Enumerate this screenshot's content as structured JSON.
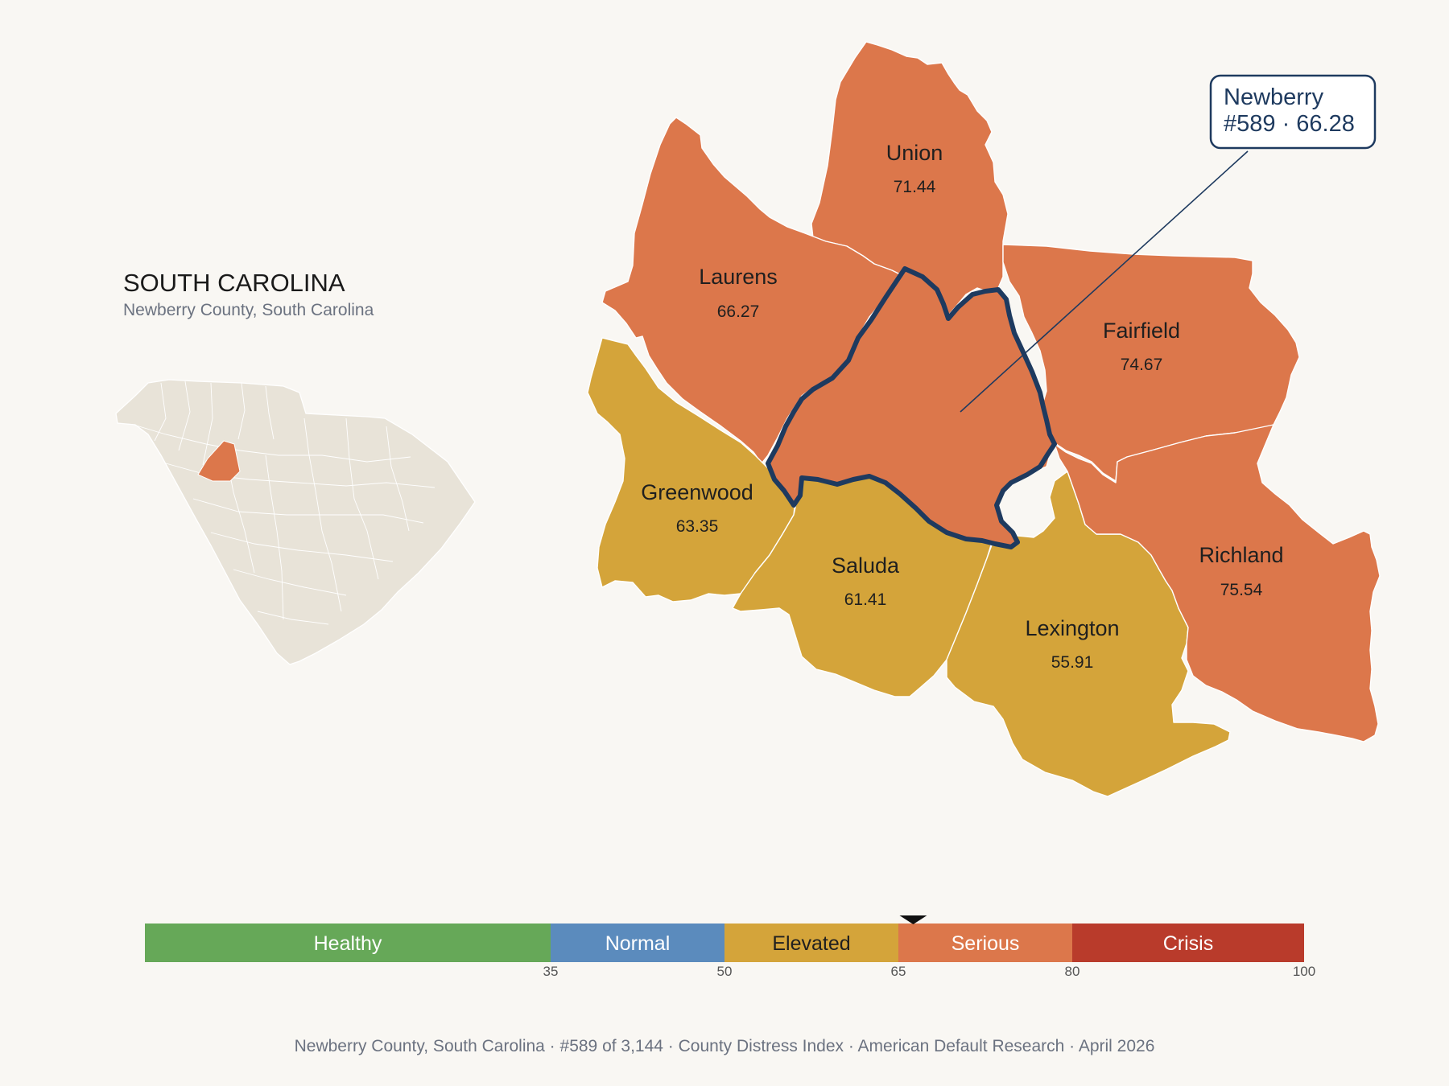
{
  "state": {
    "title": "SOUTH CAROLINA",
    "subtitle": "Newberry County, South Carolina"
  },
  "focus_county": {
    "name": "Newberry",
    "rank": "#589",
    "score": "66.28",
    "callout": "#589 · 66.28"
  },
  "neighbors": [
    {
      "id": "union",
      "name": "Union",
      "score": "71.44",
      "category": "serious"
    },
    {
      "id": "laurens",
      "name": "Laurens",
      "score": "66.27",
      "category": "serious"
    },
    {
      "id": "fairfield",
      "name": "Fairfield",
      "score": "74.67",
      "category": "serious"
    },
    {
      "id": "greenwood",
      "name": "Greenwood",
      "score": "63.35",
      "category": "elevated"
    },
    {
      "id": "saluda",
      "name": "Saluda",
      "score": "61.41",
      "category": "elevated"
    },
    {
      "id": "lexington",
      "name": "Lexington",
      "score": "55.91",
      "category": "elevated"
    },
    {
      "id": "richland",
      "name": "Richland",
      "score": "75.54",
      "category": "serious"
    }
  ],
  "scale": {
    "min": 0,
    "max": 100,
    "marker_value": 66.28,
    "categories": [
      {
        "label": "Healthy",
        "from": 0,
        "to": 35,
        "color": "#66a858",
        "text_color": "#ffffff"
      },
      {
        "label": "Normal",
        "from": 35,
        "to": 50,
        "color": "#5b8bbd",
        "text_color": "#ffffff"
      },
      {
        "label": "Elevated",
        "from": 50,
        "to": 65,
        "color": "#d4a43a",
        "text_color": "#1f1f1f"
      },
      {
        "label": "Serious",
        "from": 65,
        "to": 80,
        "color": "#dc774b",
        "text_color": "#ffffff"
      },
      {
        "label": "Crisis",
        "from": 80,
        "to": 100,
        "color": "#b93b2b",
        "text_color": "#ffffff"
      }
    ],
    "ticks": [
      "35",
      "50",
      "65",
      "80",
      "100"
    ]
  },
  "colors": {
    "serious": "#dc774b",
    "elevated": "#d4a43a",
    "outline": "#1e3a5f",
    "inset_fill": "#e8e3d8",
    "inset_highlight": "#dc774b",
    "background": "#f9f7f3"
  },
  "footer": {
    "county": "Newberry County, South Carolina",
    "rank": "#589 of 3,144",
    "index": "County Distress Index",
    "source": "American Default Research",
    "date": "April 2026",
    "separator": "·"
  }
}
